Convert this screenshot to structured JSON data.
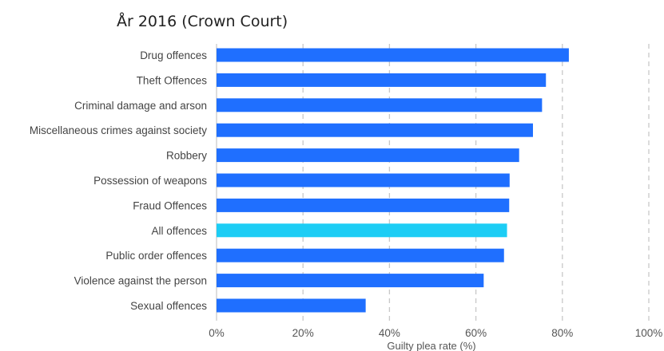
{
  "chart_data": {
    "type": "bar",
    "orientation": "horizontal",
    "title": "År 2016 (Crown Court)",
    "xlabel": "Guilty plea rate (%)",
    "ylabel": "",
    "categories": [
      "Drug offences",
      "Theft Offences",
      "Criminal damage and arson",
      "Miscellaneous crimes against society",
      "Robbery",
      "Possession of weapons",
      "Fraud Offences",
      "All offences",
      "Public order offences",
      "Violence against the person",
      "Sexual offences"
    ],
    "values": [
      81.5,
      76.2,
      75.3,
      73.2,
      70.0,
      67.8,
      67.7,
      67.2,
      66.5,
      61.8,
      34.5
    ],
    "highlight_category": "All offences",
    "xlim": [
      0,
      100
    ],
    "xticks": [
      0,
      20,
      40,
      60,
      80,
      100
    ],
    "xtick_labels": [
      "0%",
      "20%",
      "40%",
      "60%",
      "80%",
      "100%"
    ],
    "grid": "vertical dashed",
    "colors": {
      "bar": "#1f6fff",
      "highlight": "#1ccdf5",
      "grid": "#c8c8c8",
      "axis": "#bbbbbb"
    }
  }
}
